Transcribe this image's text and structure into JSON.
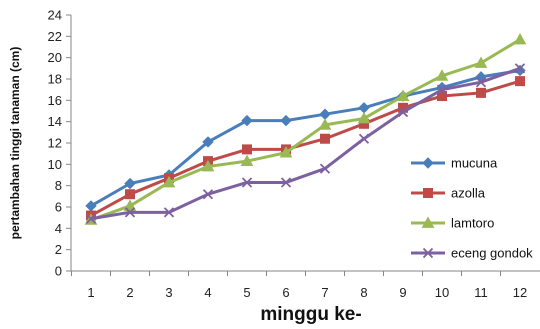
{
  "chart_data": {
    "type": "line",
    "title": "",
    "xlabel": "minggu ke-",
    "ylabel": "pertambahan tinggi tanaman (cm)",
    "x": [
      1,
      2,
      3,
      4,
      5,
      6,
      7,
      8,
      9,
      10,
      11,
      12
    ],
    "ylim": [
      0,
      24
    ],
    "yticks": [
      0,
      2,
      4,
      6,
      8,
      10,
      12,
      14,
      16,
      18,
      20,
      22,
      24
    ],
    "grid": false,
    "legend_position": "right",
    "series": [
      {
        "name": "mucuna",
        "color": "#4a7ebb",
        "marker": "diamond",
        "values": [
          6.1,
          8.2,
          9.0,
          12.1,
          14.1,
          14.1,
          14.7,
          15.3,
          16.4,
          17.2,
          18.2,
          18.8
        ]
      },
      {
        "name": "azolla",
        "color": "#be4b48",
        "marker": "square",
        "values": [
          5.2,
          7.2,
          8.7,
          10.3,
          11.4,
          11.4,
          12.4,
          13.8,
          15.3,
          16.4,
          16.7,
          17.8
        ]
      },
      {
        "name": "lamtoro",
        "color": "#98b954",
        "marker": "triangle",
        "values": [
          4.8,
          6.1,
          8.3,
          9.8,
          10.3,
          11.1,
          13.7,
          14.3,
          16.4,
          18.3,
          19.5,
          21.7
        ]
      },
      {
        "name": "eceng gondok",
        "color": "#7d60a0",
        "marker": "x",
        "values": [
          4.9,
          5.5,
          5.5,
          7.2,
          8.3,
          8.3,
          9.6,
          12.4,
          14.9,
          17.0,
          17.7,
          19.0
        ]
      }
    ]
  }
}
